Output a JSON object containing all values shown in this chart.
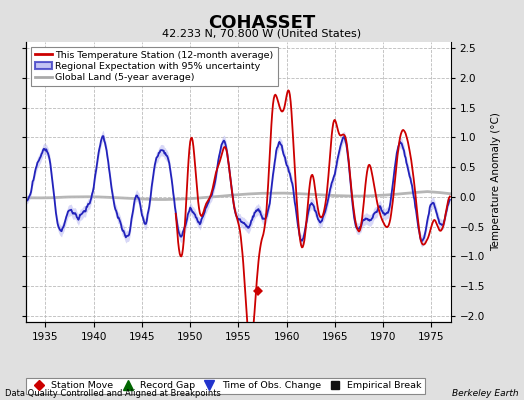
{
  "title": "COHASSET",
  "subtitle": "42.233 N, 70.800 W (United States)",
  "xlabel_bottom": "Data Quality Controlled and Aligned at Breakpoints",
  "xlabel_right": "Berkeley Earth",
  "ylabel_right": "Temperature Anomaly (°C)",
  "xlim": [
    1933,
    1977
  ],
  "ylim": [
    -2.1,
    2.6
  ],
  "yticks": [
    -2,
    -1.5,
    -1,
    -0.5,
    0,
    0.5,
    1,
    1.5,
    2,
    2.5
  ],
  "xticks": [
    1935,
    1940,
    1945,
    1950,
    1955,
    1960,
    1965,
    1970,
    1975
  ],
  "bg_color": "#e0e0e0",
  "plot_bg_color": "#ffffff",
  "grid_color": "#bbbbbb",
  "station_move_year": 1957.0,
  "station_move_y": -1.58,
  "legend_labels": [
    "This Temperature Station (12-month average)",
    "Regional Expectation with 95% uncertainty",
    "Global Land (5-year average)"
  ],
  "legend_colors": [
    "#cc0000",
    "#2222bb",
    "#aaaaaa"
  ],
  "region_fill_color": "#aaaaee",
  "marker_labels": [
    "Station Move",
    "Record Gap",
    "Time of Obs. Change",
    "Empirical Break"
  ],
  "marker_colors": [
    "#cc0000",
    "#006600",
    "#2233cc",
    "#111111"
  ],
  "marker_styles": [
    "D",
    "^",
    "v",
    "s"
  ]
}
